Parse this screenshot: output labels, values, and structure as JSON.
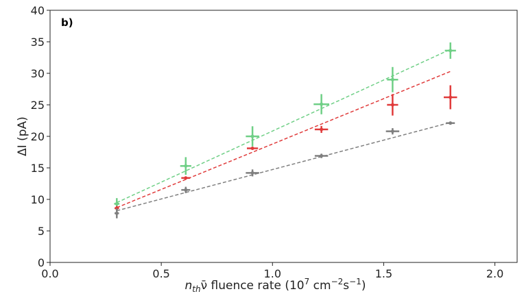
{
  "chart_data": {
    "type": "scatter",
    "panel_label": "b)",
    "xlabel": "n_th ν̄ fluence rate (10^7 cm^-2 s^-1)",
    "xlabel_parts": {
      "n": "n",
      "n_sub": "th",
      "nu": "ν̄",
      "rest": " fluence rate (10",
      "exp7": "7",
      "cm": " cm",
      "exp_cm": "−2",
      "s": "s",
      "exp_s": "−1",
      "close": ")"
    },
    "ylabel": "ΔI (pA)",
    "xlim": [
      0.0,
      2.1
    ],
    "ylim": [
      0,
      40
    ],
    "xticks": [
      0.0,
      0.5,
      1.0,
      1.5,
      2.0
    ],
    "xtick_labels": [
      "0.0",
      "0.5",
      "1.0",
      "1.5",
      "2.0"
    ],
    "yticks": [
      0,
      5,
      10,
      15,
      20,
      25,
      30,
      35,
      40
    ],
    "ytick_labels": [
      "0",
      "5",
      "10",
      "15",
      "20",
      "25",
      "30",
      "35",
      "40"
    ],
    "grid": false,
    "series": [
      {
        "color": "#6fcf86",
        "points": [
          {
            "x": 0.3,
            "y": 9.3,
            "xerr": 0.012,
            "yerr": 0.9
          },
          {
            "x": 0.61,
            "y": 15.3,
            "xerr": 0.025,
            "yerr": 1.4
          },
          {
            "x": 0.91,
            "y": 20.0,
            "xerr": 0.03,
            "yerr": 1.6
          },
          {
            "x": 1.22,
            "y": 25.1,
            "xerr": 0.035,
            "yerr": 1.6
          },
          {
            "x": 1.54,
            "y": 29.0,
            "xerr": 0.025,
            "yerr": 2.0
          },
          {
            "x": 1.8,
            "y": 33.6,
            "xerr": 0.025,
            "yerr": 1.3
          }
        ],
        "fit": {
          "x": [
            0.3,
            1.8
          ],
          "y": [
            9.5,
            33.8
          ]
        }
      },
      {
        "color": "#e03a3a",
        "points": [
          {
            "x": 0.3,
            "y": 8.6,
            "xerr": 0.01,
            "yerr": 0.35
          },
          {
            "x": 0.61,
            "y": 13.4,
            "xerr": 0.02,
            "yerr": 0.2
          },
          {
            "x": 0.91,
            "y": 18.1,
            "xerr": 0.025,
            "yerr": 0.2
          },
          {
            "x": 1.22,
            "y": 21.1,
            "xerr": 0.03,
            "yerr": 0.55
          },
          {
            "x": 1.54,
            "y": 25.0,
            "xerr": 0.025,
            "yerr": 1.7
          },
          {
            "x": 1.8,
            "y": 26.2,
            "xerr": 0.03,
            "yerr": 1.9
          }
        ],
        "fit": {
          "x": [
            0.3,
            1.8
          ],
          "y": [
            8.7,
            30.3
          ]
        }
      },
      {
        "color": "#7f7f7f",
        "points": [
          {
            "x": 0.3,
            "y": 7.8,
            "xerr": 0.01,
            "yerr": 0.8
          },
          {
            "x": 0.61,
            "y": 11.5,
            "xerr": 0.02,
            "yerr": 0.5
          },
          {
            "x": 0.91,
            "y": 14.2,
            "xerr": 0.03,
            "yerr": 0.55
          },
          {
            "x": 1.22,
            "y": 16.9,
            "xerr": 0.03,
            "yerr": 0.35
          },
          {
            "x": 1.54,
            "y": 20.8,
            "xerr": 0.03,
            "yerr": 0.5
          },
          {
            "x": 1.8,
            "y": 22.1,
            "xerr": 0.02,
            "yerr": 0.15
          }
        ],
        "fit": {
          "x": [
            0.3,
            1.8
          ],
          "y": [
            8.2,
            22.2
          ]
        }
      }
    ]
  }
}
